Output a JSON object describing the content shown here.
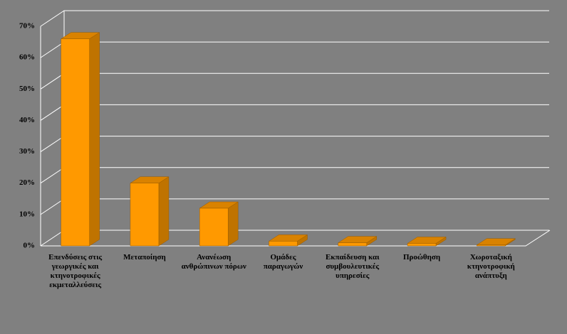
{
  "chart_data": {
    "type": "bar",
    "categories": [
      "Επενδύσεις στις γεωργικές και κτηνοτροφικές εκμεταλλεύσεις",
      "Μεταποίηση",
      "Ανανέωση ανθρώπινων πόρων",
      "Ομάδες παραγωγών",
      "Εκπαίδευση και συμβουλευτικές υπηρεσίες",
      "Προώθηση",
      "Χωροταξική κτηνοτροφική ανάπτυξη"
    ],
    "values": [
      66,
      20,
      12,
      1.5,
      1,
      0.8,
      0.3
    ],
    "color": "#ff9900",
    "ylim": [
      0,
      70
    ],
    "yticks": [
      {
        "value": 0,
        "label": "0%"
      },
      {
        "value": 10,
        "label": "10%"
      },
      {
        "value": 20,
        "label": "20%"
      },
      {
        "value": 30,
        "label": "30%"
      },
      {
        "value": 40,
        "label": "40%"
      },
      {
        "value": 50,
        "label": "50%"
      },
      {
        "value": 60,
        "label": "60%"
      },
      {
        "value": 70,
        "label": "70%"
      }
    ],
    "grid": true
  }
}
